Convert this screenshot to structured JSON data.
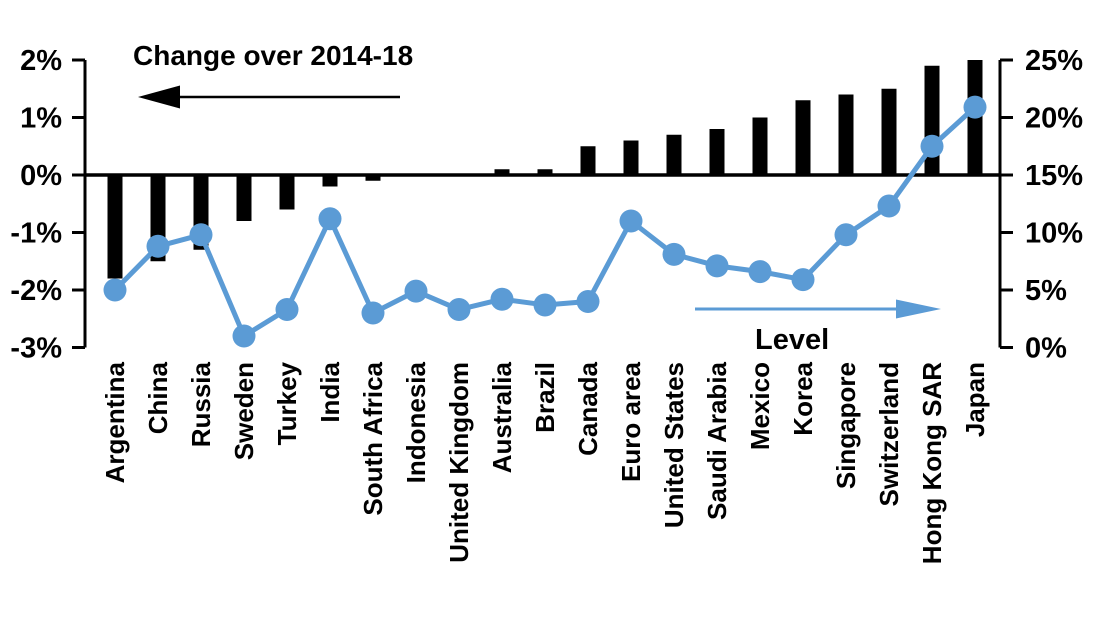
{
  "chart_data": {
    "type": "bar",
    "title": "",
    "categories": [
      "Argentina",
      "China",
      "Russia",
      "Sweden",
      "Turkey",
      "India",
      "South Africa",
      "Indonesia",
      "United Kingdom",
      "Australia",
      "Brazil",
      "Canada",
      "Euro area",
      "United States",
      "Saudi Arabia",
      "Mexico",
      "Korea",
      "Singapore",
      "Switzerland",
      "Hong Kong SAR",
      "Japan"
    ],
    "series": [
      {
        "name": "Change over 2014-18",
        "kind": "bar",
        "axis": "left",
        "color": "#000000",
        "values": [
          -1.8,
          -1.5,
          -1.3,
          -0.8,
          -0.6,
          -0.2,
          -0.1,
          0,
          0,
          0.1,
          0.1,
          0.5,
          0.6,
          0.7,
          0.8,
          1.0,
          1.3,
          1.4,
          1.5,
          1.9,
          2.0
        ]
      },
      {
        "name": "Level",
        "kind": "line",
        "axis": "right",
        "color": "#5B9BD5",
        "values": [
          5.0,
          8.8,
          9.8,
          1.0,
          3.3,
          11.2,
          3.0,
          4.9,
          3.3,
          4.2,
          3.7,
          4.0,
          11.0,
          8.1,
          7.1,
          6.6,
          5.9,
          9.8,
          12.3,
          17.5,
          20.9
        ]
      }
    ],
    "left_axis": {
      "tick_labels": [
        "2%",
        "1%",
        "0%",
        "-1%",
        "-2%",
        "-3%"
      ],
      "tick_values": [
        2,
        1,
        0,
        -1,
        -2,
        -3
      ],
      "min": -3,
      "max": 2,
      "unit": "%"
    },
    "right_axis": {
      "tick_labels": [
        "25%",
        "20%",
        "15%",
        "10%",
        "5%",
        "0%"
      ],
      "tick_values": [
        25,
        20,
        15,
        10,
        5,
        0
      ],
      "min": 0,
      "max": 25,
      "unit": "%"
    },
    "annotations": {
      "bar_label": {
        "text": "Change over 2014-18",
        "arrow": "left",
        "color": "#000000"
      },
      "line_label": {
        "text": "Level",
        "arrow": "right",
        "color": "#5B9BD5"
      }
    },
    "grid": "off",
    "legend_position": "in-plot annotations",
    "background": "#FFFFFF"
  }
}
